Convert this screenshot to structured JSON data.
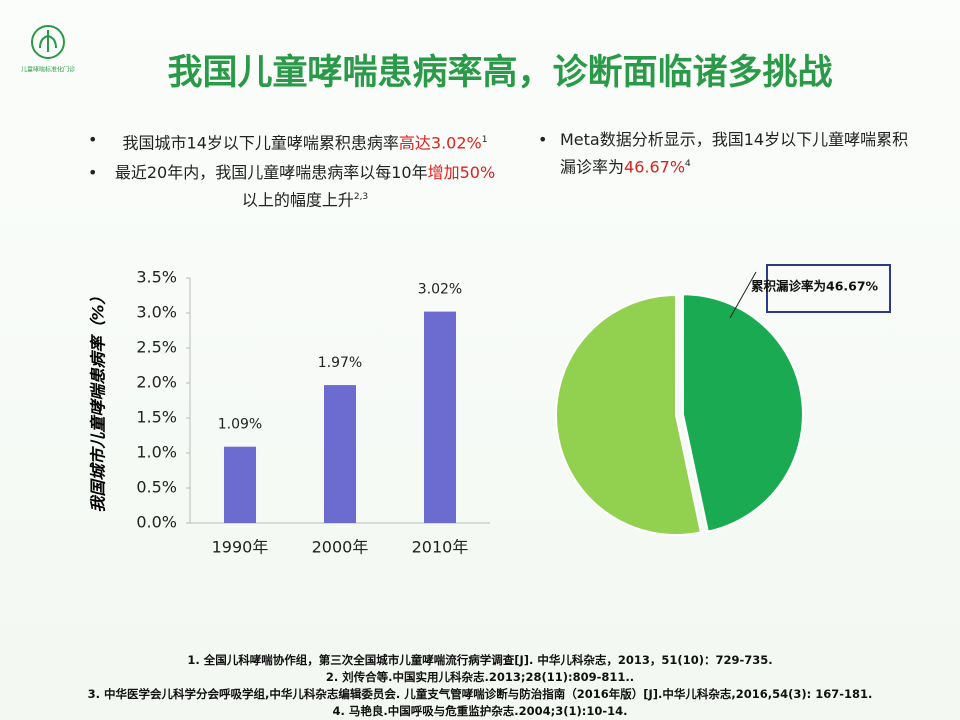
{
  "slide": {
    "logo_text": "儿童哮喘标准化门诊",
    "title": "我国儿童哮喘患病率高，诊断面临诸多挑战",
    "left_bullets": [
      [
        {
          "text": "我国城市14岁以下儿童哮喘累积患病率"
        },
        {
          "text": "高达3.02%",
          "highlight": true
        },
        {
          "text": "1",
          "sup": true
        }
      ],
      [
        {
          "text": "最近20年内，我国儿童哮喘患病率以每10年"
        },
        {
          "text": "增加50%",
          "highlight": true
        },
        {
          "text": "以上的幅度上升"
        },
        {
          "text": "2,3",
          "sup": true
        }
      ]
    ],
    "right_bullets": [
      [
        {
          "text": "Meta数据分析显示，我国14岁以下儿童哮喘累积漏诊率为"
        },
        {
          "text": "46.67%",
          "highlight": true
        },
        {
          "text": "4",
          "sup": true
        }
      ]
    ],
    "references": [
      "1. 全国儿科哮喘协作组，第三次全国城市儿童哮喘流行病学调查[J]. 中华儿科杂志，2013，51(10)：729-735.",
      "2. 刘传合等.中国实用儿科杂志.2013;28(11):809-811..",
      "3. 中华医学会儿科学分会呼吸学组,中华儿科杂志编辑委员会. 儿童支气管哮喘诊断与防治指南（2016年版）[J].中华儿科杂志,2016,54(3): 167-181.",
      "4. 马艳良.中国呼吸与危重监护杂志.2004;3(1):10-14."
    ]
  },
  "chart_data": [
    {
      "type": "bar",
      "ylabel": "我国城市儿童哮喘患病率（%）",
      "categories": [
        "1990年",
        "2000年",
        "2010年"
      ],
      "values": [
        1.09,
        1.97,
        3.02
      ],
      "value_labels": [
        "1.09%",
        "1.97%",
        "3.02%"
      ],
      "color": "#6b6bd0",
      "ylim": [
        0,
        3.5
      ],
      "yticks": [
        {
          "value": 0,
          "label": "0.0%"
        },
        {
          "value": 0.5,
          "label": "0.5%"
        },
        {
          "value": 1,
          "label": "1.0%"
        },
        {
          "value": 1.5,
          "label": "1.5%"
        },
        {
          "value": 2,
          "label": "2.0%"
        },
        {
          "value": 2.5,
          "label": "2.5%"
        },
        {
          "value": 3,
          "label": "3.0%"
        },
        {
          "value": 3.5,
          "label": "3.5%"
        }
      ]
    },
    {
      "type": "pie",
      "annotation": "累积漏诊率为46.67%",
      "values": [
        46.67,
        53.33
      ],
      "colors": [
        "#19aa52",
        "#92d050"
      ]
    }
  ]
}
